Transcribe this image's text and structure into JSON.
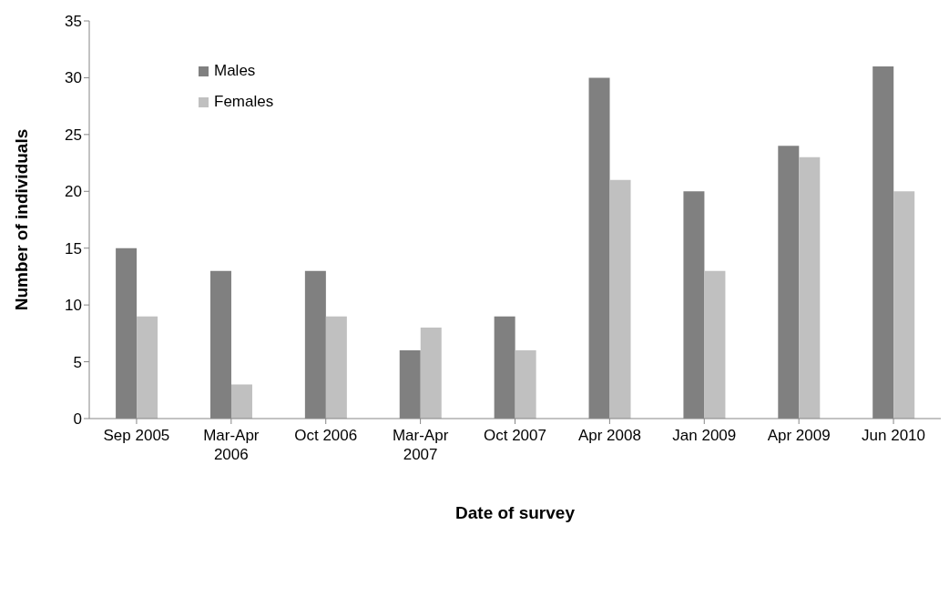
{
  "chart_data": {
    "type": "bar",
    "xlabel": "Date of survey",
    "ylabel": "Number of individuals",
    "categories": [
      "Sep 2005",
      "Mar-Apr 2006",
      "Oct 2006",
      "Mar-Apr 2007",
      "Oct 2007",
      "Apr 2008",
      "Jan 2009",
      "Apr 2009",
      "Jun 2010"
    ],
    "series": [
      {
        "name": "Males",
        "color": "#808080",
        "values": [
          15,
          13,
          13,
          6,
          9,
          30,
          20,
          24,
          31
        ]
      },
      {
        "name": "Females",
        "color": "#c0c0c0",
        "values": [
          9,
          3,
          9,
          8,
          6,
          21,
          13,
          23,
          20
        ]
      }
    ],
    "ylim": [
      0,
      35
    ],
    "yticks": [
      0,
      5,
      10,
      15,
      20,
      25,
      30,
      35
    ],
    "grid": false,
    "legend": "top left"
  }
}
